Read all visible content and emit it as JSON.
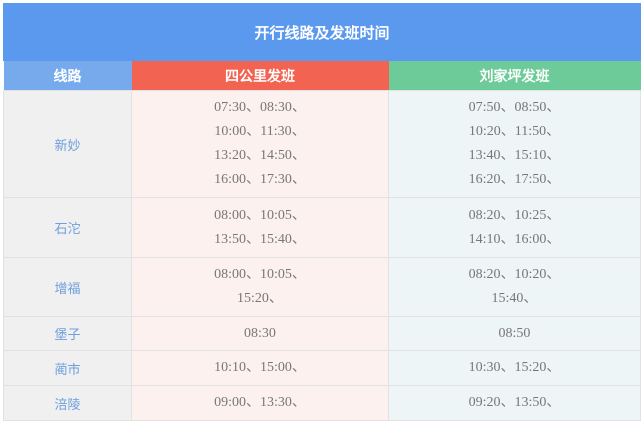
{
  "title": "开行线路及发班时间",
  "headers": [
    "线路",
    "四公里发班",
    "刘家坪发班"
  ],
  "colors": {
    "title_bg": "#5b99ee",
    "route_header": "#76aaed",
    "sigongli_header": "#f26451",
    "liujiaping_header": "#6ccb98"
  },
  "rows": [
    {
      "route": "新妙",
      "a": [
        "07:30、08:30、",
        "10:00、11:30、",
        "13:20、14:50、",
        "16:00、17:30、"
      ],
      "b": [
        "07:50、08:50、",
        "10:20、11:50、",
        "13:40、15:10、",
        "16:20、17:50、"
      ]
    },
    {
      "route": "石沱",
      "a": [
        "08:00、10:05、",
        "13:50、15:40、"
      ],
      "b": [
        "08:20、10:25、",
        "14:10、16:00、"
      ]
    },
    {
      "route": "增福",
      "a": [
        "08:00、10:05、",
        "15:20、"
      ],
      "b": [
        "08:20、10:20、",
        "15:40、"
      ]
    },
    {
      "route": "堡子",
      "a": [
        "08:30"
      ],
      "b": [
        "08:50"
      ]
    },
    {
      "route": "蔺市",
      "a": [
        "10:10、15:00、"
      ],
      "b": [
        "10:30、15:20、"
      ]
    },
    {
      "route": "涪陵",
      "a": [
        "09:00、13:30、"
      ],
      "b": [
        "09:20、13:50、"
      ]
    }
  ]
}
